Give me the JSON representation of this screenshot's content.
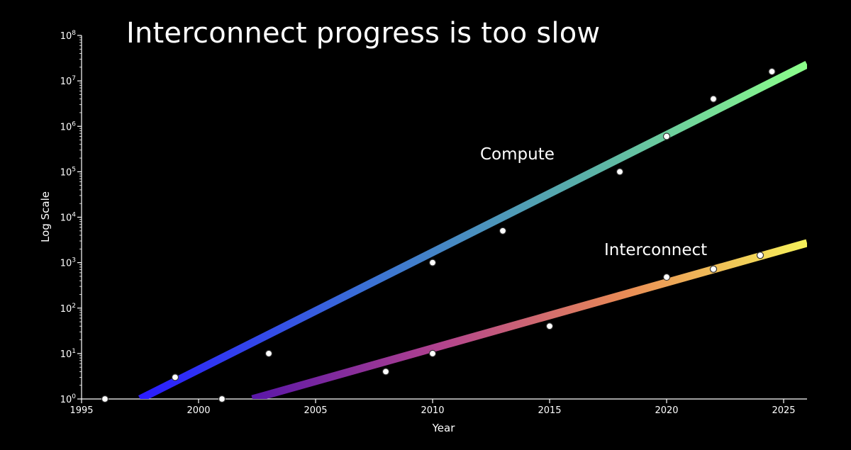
{
  "title": "Interconnect progress is too slow",
  "chart_data": {
    "type": "scatter",
    "title": "Interconnect progress is too slow",
    "xlabel": "Year",
    "ylabel": "Log Scale",
    "xlim": [
      1995,
      2026
    ],
    "ylim_exp": [
      0,
      8
    ],
    "y_scale": "log10",
    "x_ticks": [
      1995,
      2000,
      2005,
      2010,
      2015,
      2020,
      2025
    ],
    "y_ticks": [
      {
        "base": "10",
        "exp": "0"
      },
      {
        "base": "10",
        "exp": "1"
      },
      {
        "base": "10",
        "exp": "2"
      },
      {
        "base": "10",
        "exp": "3"
      },
      {
        "base": "10",
        "exp": "4"
      },
      {
        "base": "10",
        "exp": "5"
      },
      {
        "base": "10",
        "exp": "6"
      },
      {
        "base": "10",
        "exp": "7"
      },
      {
        "base": "10",
        "exp": "8"
      }
    ],
    "series": [
      {
        "name": "Compute",
        "points": [
          {
            "x": 1996,
            "y": 1
          },
          {
            "x": 1999,
            "y": 3
          },
          {
            "x": 2003,
            "y": 10
          },
          {
            "x": 2010,
            "y": 1000
          },
          {
            "x": 2013,
            "y": 5000
          },
          {
            "x": 2018,
            "y": 100000
          },
          {
            "x": 2020,
            "y": 600000
          },
          {
            "x": 2022,
            "y": 4000000
          },
          {
            "x": 2024.5,
            "y": 16000000
          }
        ],
        "trend": [
          {
            "x": 1997.5,
            "y": 1
          },
          {
            "x": 2026,
            "y": 23000000
          }
        ],
        "gradient": [
          "#2b1bff",
          "#3a6fd6",
          "#59b0a8",
          "#8cff8a"
        ]
      },
      {
        "name": "Interconnect",
        "points": [
          {
            "x": 2001,
            "y": 1
          },
          {
            "x": 2008,
            "y": 4
          },
          {
            "x": 2010,
            "y": 10
          },
          {
            "x": 2015,
            "y": 40
          },
          {
            "x": 2020,
            "y": 480
          },
          {
            "x": 2022,
            "y": 720
          },
          {
            "x": 2024,
            "y": 1450
          }
        ],
        "trend": [
          {
            "x": 2002.3,
            "y": 1
          },
          {
            "x": 2026,
            "y": 2700
          }
        ],
        "gradient": [
          "#5a17a8",
          "#b1428f",
          "#e98a56",
          "#f6f25a"
        ]
      }
    ]
  }
}
